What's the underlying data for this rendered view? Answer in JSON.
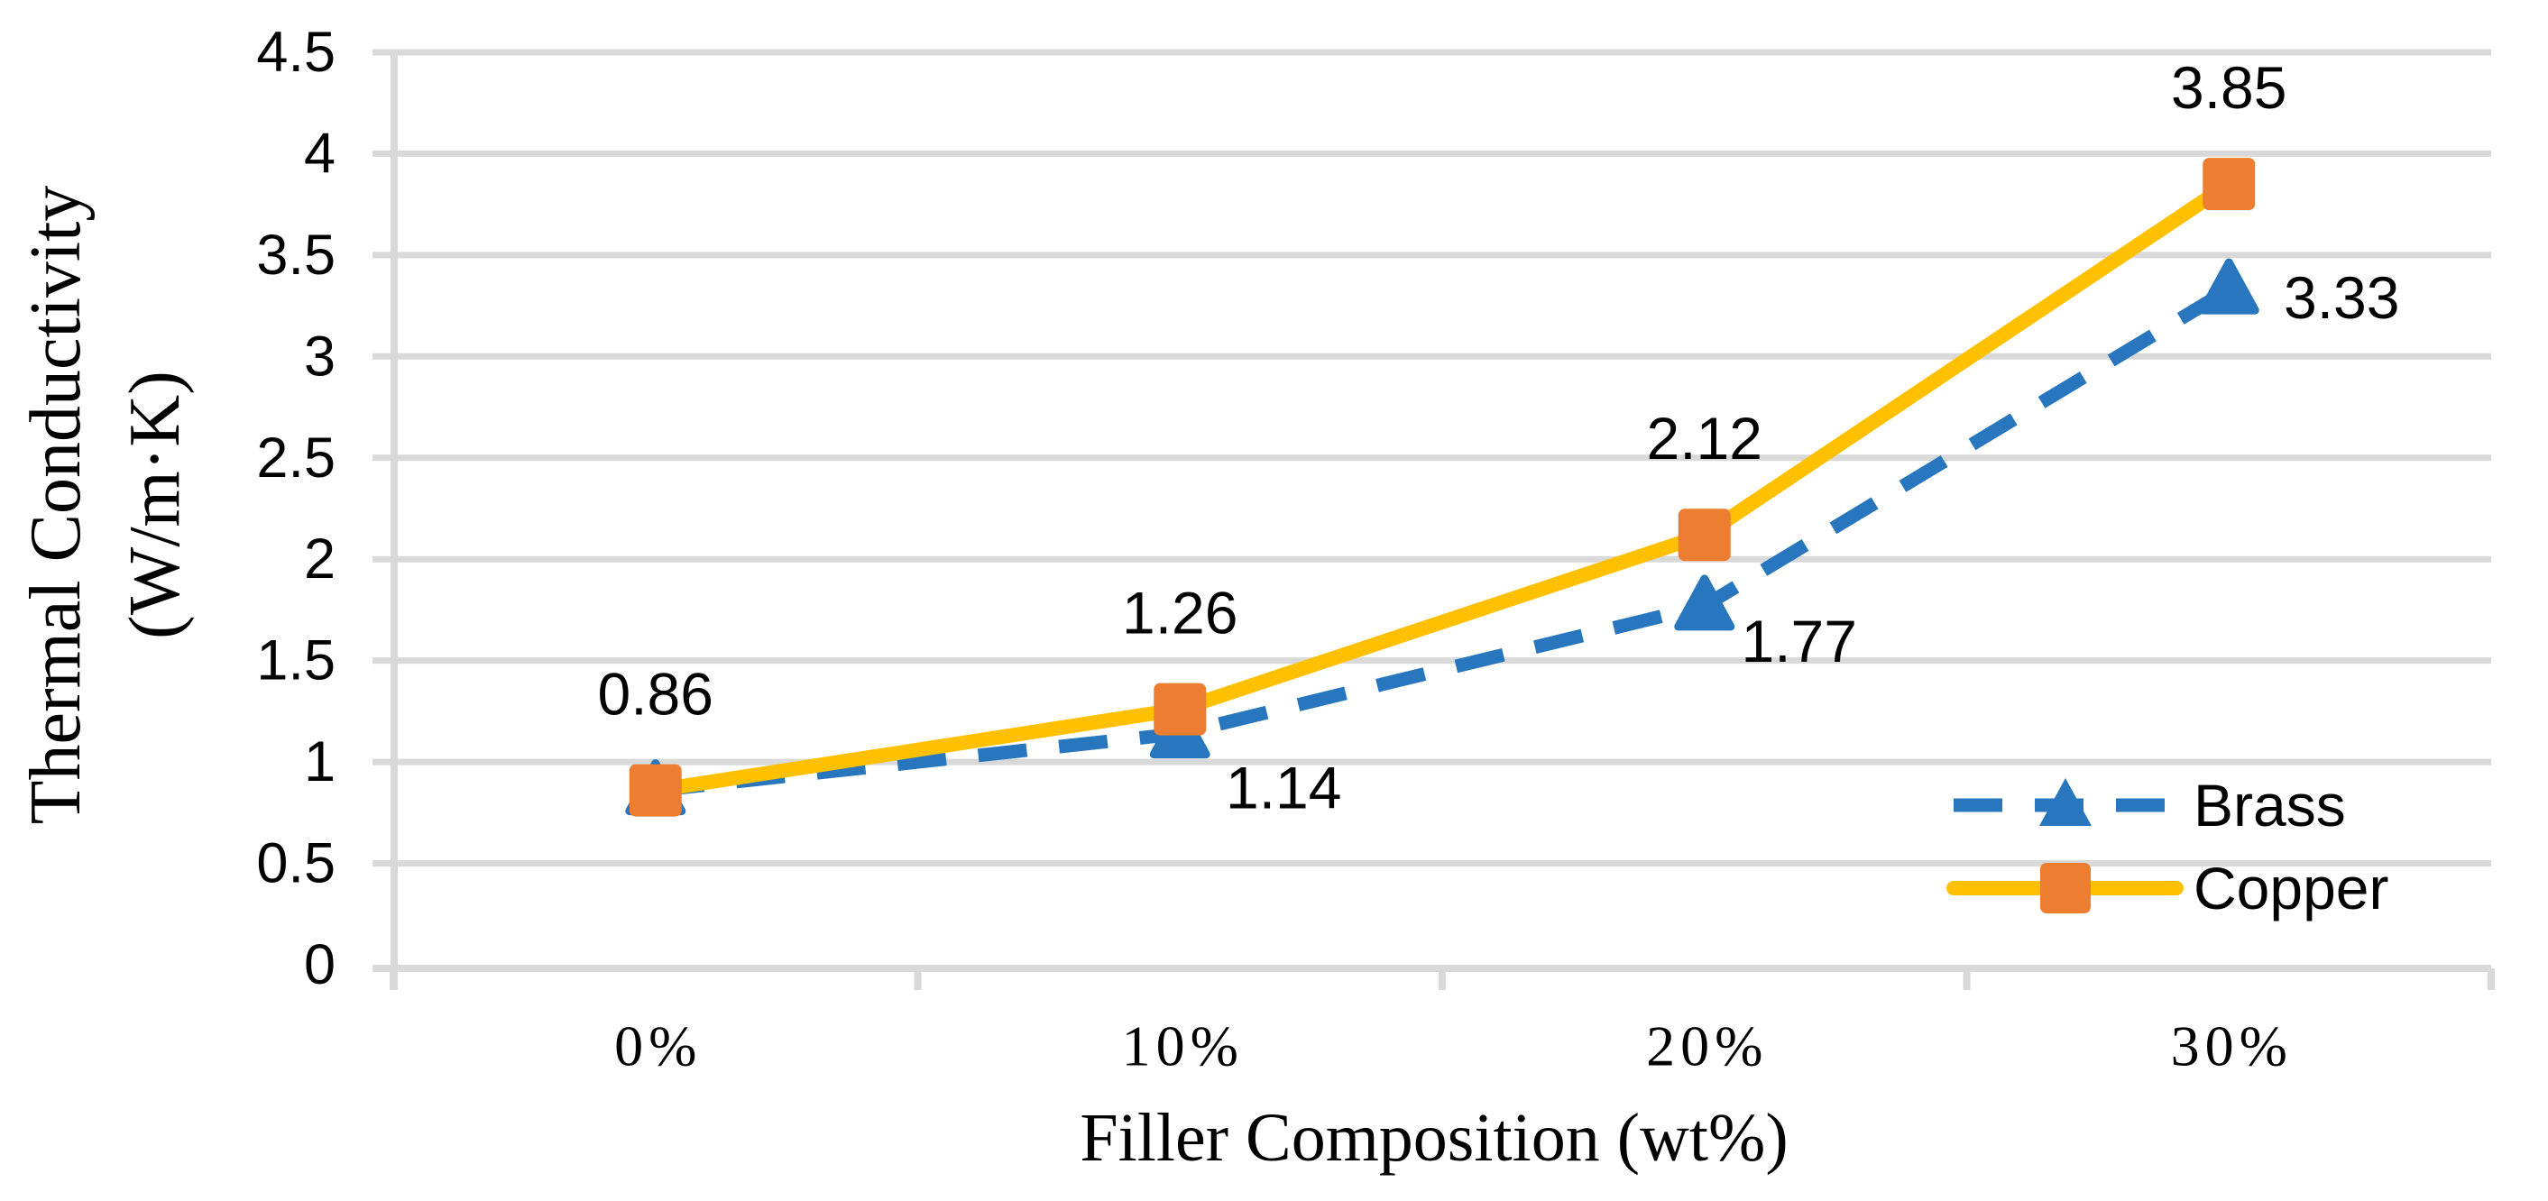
{
  "chart_data": {
    "type": "line",
    "title": "",
    "xlabel": "Filler Composition (wt%)",
    "ylabel": "Thermal Conductivity (W/m·K)",
    "ylabel_lines": [
      "Thermal Conductivity",
      "(W/m·K)"
    ],
    "categories": [
      "0%",
      "10%",
      "20%",
      "30%"
    ],
    "x_tick_labels": [
      "0%",
      "10%",
      "20%",
      "30%"
    ],
    "y_tick_labels": [
      "0",
      "0.5",
      "1",
      "1.5",
      "2",
      "2.5",
      "3",
      "3.5",
      "4",
      "4.5"
    ],
    "y_tick_values": [
      0,
      0.5,
      1,
      1.5,
      2,
      2.5,
      3,
      3.5,
      4,
      4.5
    ],
    "ylim": [
      0,
      4.5
    ],
    "grid": "horizontal",
    "legend_position": "inside-right",
    "series": [
      {
        "name": "Brass",
        "values": [
          0.86,
          1.14,
          1.77,
          3.33
        ],
        "point_labels": [
          "",
          "1.14",
          "1.77",
          "3.33"
        ],
        "color": "#2776BE",
        "marker_color": "#2776BE",
        "line_style": "dashed",
        "marker": "triangle"
      },
      {
        "name": "Copper",
        "values": [
          0.86,
          1.26,
          2.12,
          3.85
        ],
        "point_labels": [
          "0.86",
          "1.26",
          "2.12",
          "3.85"
        ],
        "color": "#FFC000",
        "marker_color": "#ED7D31",
        "line_style": "solid",
        "marker": "square"
      }
    ],
    "colors": {
      "grid": "#D9D9D9",
      "axis": "#D9D9D9",
      "text": "#000000",
      "background": "#FFFFFF"
    }
  }
}
